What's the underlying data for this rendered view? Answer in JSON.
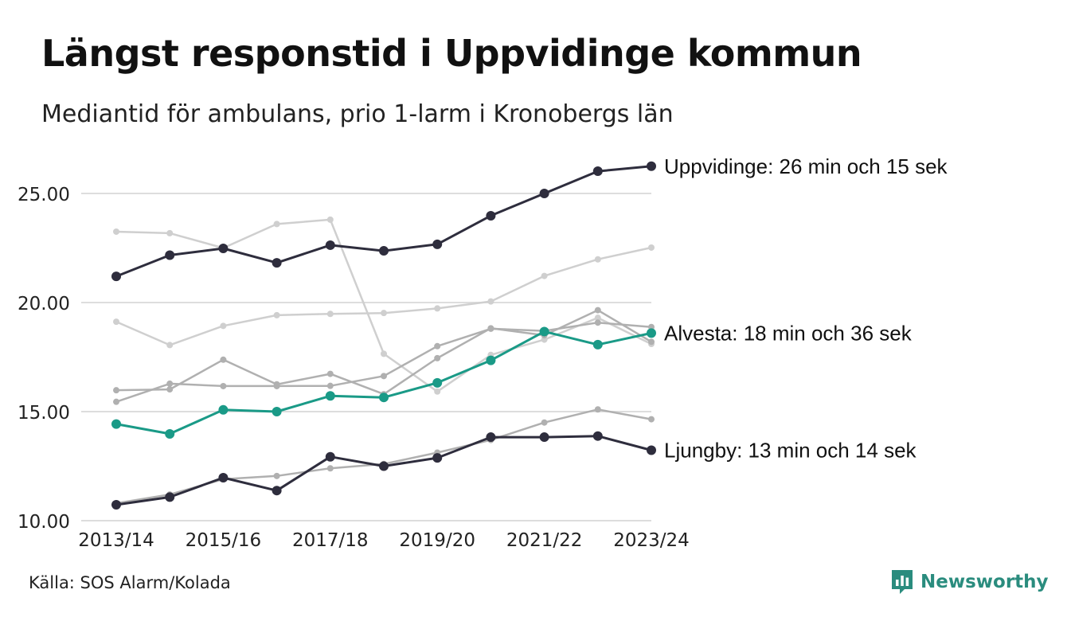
{
  "title": "Längst responstid i Uppvidinge kommun",
  "subtitle": "Mediantid för ambulans, prio 1-larm i Kronobergs län",
  "source": "Källa: SOS Alarm/Kolada",
  "brand": {
    "name": "Newsworthy",
    "icon": "newsworthy-logo-icon",
    "color": "#2a8c7e"
  },
  "colors": {
    "highlight_dark": "#2e2d3d",
    "highlight_accent": "#1a9a87",
    "background_light": "#cfcfcf",
    "background_mid": "#b0b0b0",
    "grid": "#dddddd"
  },
  "chart_data": {
    "type": "line",
    "x": [
      "2013/14",
      "2014/15",
      "2015/16",
      "2016/17",
      "2017/18",
      "2018/19",
      "2019/20",
      "2020/21",
      "2021/22",
      "2022/23",
      "2023/24"
    ],
    "x_tick_labels": [
      "2013/14",
      "2015/16",
      "2017/18",
      "2019/20",
      "2021/22",
      "2023/24"
    ],
    "y_tick_labels": [
      "10.00",
      "15.00",
      "20.00",
      "25.00"
    ],
    "ylim": [
      10,
      26.5
    ],
    "grid": true,
    "series": [
      {
        "role": "background",
        "tone": "light",
        "values": [
          23.25,
          23.18,
          22.5,
          23.6,
          23.8,
          17.65,
          15.92,
          17.6,
          18.3,
          19.3,
          18.1
        ]
      },
      {
        "role": "background",
        "tone": "light",
        "values": [
          19.12,
          18.05,
          18.93,
          19.42,
          19.48,
          19.52,
          19.73,
          20.05,
          21.22,
          21.98,
          22.52
        ]
      },
      {
        "role": "background",
        "tone": "mid",
        "values": [
          15.98,
          16.02,
          17.38,
          16.25,
          16.73,
          15.8,
          17.45,
          18.82,
          18.5,
          19.65,
          18.2
        ]
      },
      {
        "role": "background",
        "tone": "mid",
        "values": [
          15.45,
          16.28,
          16.17,
          16.17,
          16.18,
          16.63,
          18.0,
          18.8,
          18.7,
          19.08,
          18.88
        ]
      },
      {
        "role": "background",
        "tone": "mid",
        "values": [
          10.8,
          11.2,
          11.9,
          12.05,
          12.4,
          12.6,
          13.12,
          13.7,
          14.5,
          15.1,
          14.65
        ]
      },
      {
        "role": "highlight",
        "name": "Uppvidinge",
        "label": "Uppvidinge: 26 min och 15 sek",
        "color": "#2e2d3d",
        "values": [
          21.2,
          22.17,
          22.48,
          21.82,
          22.63,
          22.37,
          22.67,
          23.98,
          25.0,
          26.02,
          26.25
        ]
      },
      {
        "role": "highlight",
        "name": "Alvesta",
        "label": "Alvesta: 18 min och 36 sek",
        "color": "#1a9a87",
        "values": [
          14.43,
          13.98,
          15.08,
          15.0,
          15.72,
          15.65,
          16.32,
          17.35,
          18.67,
          18.07,
          18.6
        ]
      },
      {
        "role": "highlight",
        "name": "Ljungby",
        "label": "Ljungby: 13 min och 14 sek",
        "color": "#2e2d3d",
        "values": [
          10.73,
          11.08,
          11.97,
          11.38,
          12.93,
          12.5,
          12.88,
          13.83,
          13.83,
          13.88,
          13.23
        ]
      }
    ]
  }
}
